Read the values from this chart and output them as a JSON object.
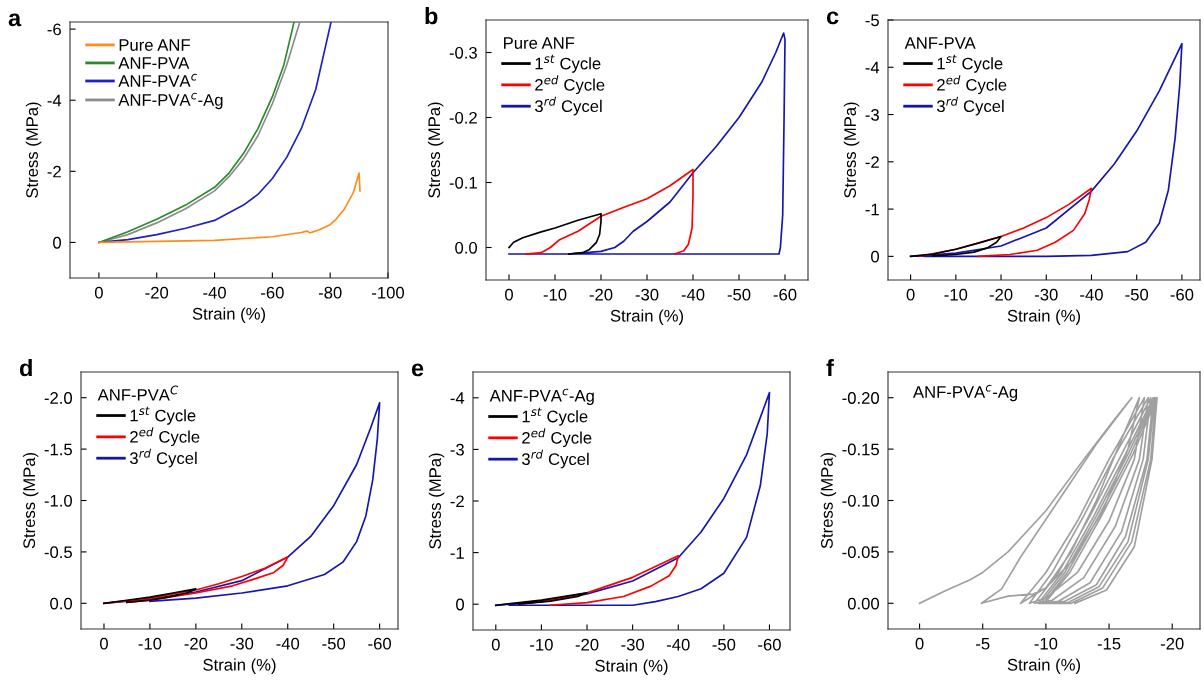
{
  "chart_data": [
    {
      "type": "line",
      "title": "a",
      "xlabel": "Strain (%)",
      "ylabel": "Stress (MPa)",
      "xlim": [
        10,
        -100
      ],
      "ylim": [
        1,
        -6.2
      ],
      "xticks": [
        0,
        -20,
        -40,
        -60,
        -80,
        -100
      ],
      "yticks": [
        -6,
        -4,
        -2,
        0
      ],
      "legend": "top left",
      "series": [
        {
          "name": "Pure ANF",
          "color": "#ff8c1a",
          "x": [
            0,
            -20,
            -40,
            -60,
            -70,
            -72,
            -73,
            -76,
            -80,
            -82,
            -85,
            -88,
            -90,
            -90.3
          ],
          "values": [
            0,
            -0.03,
            -0.06,
            -0.16,
            -0.28,
            -0.32,
            -0.27,
            -0.35,
            -0.5,
            -0.65,
            -0.95,
            -1.4,
            -1.95,
            -1.45
          ]
        },
        {
          "name": "ANF-PVA",
          "color": "#2a8a2a",
          "x": [
            0,
            -10,
            -20,
            -30,
            -40,
            -45,
            -50,
            -55,
            -60,
            -64,
            -67.5
          ],
          "values": [
            0,
            -0.3,
            -0.65,
            -1.05,
            -1.55,
            -1.95,
            -2.5,
            -3.2,
            -4.1,
            -5.0,
            -6.2
          ]
        },
        {
          "name": "ANF-PVA$^{c}$",
          "color": "#2020c0",
          "x": [
            0,
            -10,
            -20,
            -30,
            -40,
            -50,
            -55,
            -60,
            -65,
            -70,
            -75,
            -80.3
          ],
          "values": [
            0,
            -0.08,
            -0.22,
            -0.4,
            -0.62,
            -1.05,
            -1.35,
            -1.8,
            -2.4,
            -3.2,
            -4.3,
            -6.2
          ]
        },
        {
          "name": "ANF-PVA$^{c}$-Ag",
          "color": "#8c8c8c",
          "x": [
            0,
            -10,
            -20,
            -30,
            -40,
            -45,
            -50,
            -55,
            -60,
            -65,
            -69.5
          ],
          "values": [
            0,
            -0.22,
            -0.55,
            -0.95,
            -1.45,
            -1.85,
            -2.35,
            -3.0,
            -3.9,
            -5.0,
            -6.2
          ]
        }
      ]
    },
    {
      "type": "line",
      "title": "b",
      "xlabel": "Strain (%)",
      "ylabel": "Stress (MPa)",
      "xlim": [
        5,
        -65
      ],
      "ylim": [
        0.05,
        -0.35
      ],
      "xticks": [
        0,
        -10,
        -20,
        -30,
        -40,
        -50,
        -60
      ],
      "yticks": [
        {
          "value": 0,
          "label": "0.0"
        },
        -0.1,
        -0.2,
        -0.3
      ],
      "legend": "top left",
      "legend_title": "Pure ANF",
      "series": [
        {
          "name": "1$^{st}$ Cycle",
          "color": "#000000",
          "x": [
            0,
            -1,
            -3,
            -7,
            -10,
            -15,
            -20,
            -20,
            -19.7,
            -19,
            -17.5,
            -16,
            -13
          ],
          "values": [
            0,
            -0.008,
            -0.015,
            -0.024,
            -0.03,
            -0.042,
            -0.052,
            -0.04,
            -0.02,
            -0.008,
            0.003,
            0.008,
            0.01
          ]
        },
        {
          "name": "2$^{ed}$ Cycle",
          "color": "#ff0000",
          "x": [
            -3.6,
            -7,
            -9,
            -11,
            -15,
            -20,
            -25,
            -30,
            -35,
            -39,
            -40,
            -40,
            -39.8,
            -39,
            -38,
            -36
          ],
          "values": [
            0.01,
            0.008,
            0,
            -0.012,
            -0.025,
            -0.048,
            -0.062,
            -0.075,
            -0.095,
            -0.115,
            -0.12,
            -0.08,
            -0.03,
            -0.005,
            0.005,
            0.01
          ]
        },
        {
          "name": "3$^{rd}$ Cycel",
          "color": "#1515b0",
          "x": [
            -13,
            -20,
            -23,
            -25,
            -27,
            -30,
            -35,
            -40,
            -45,
            -50,
            -55,
            -58,
            -59.7,
            -60,
            -59.8,
            -59.5,
            -59,
            -58.7,
            0
          ],
          "values": [
            0.01,
            0.006,
            0,
            -0.01,
            -0.025,
            -0.04,
            -0.07,
            -0.115,
            -0.155,
            -0.2,
            -0.255,
            -0.3,
            -0.33,
            -0.32,
            -0.2,
            -0.05,
            0,
            0.01,
            0.01
          ]
        }
      ]
    },
    {
      "type": "line",
      "title": "c",
      "xlabel": "Strain (%)",
      "ylabel": "Stress (MPa)",
      "xlim": [
        5,
        -64
      ],
      "ylim": [
        0.5,
        -5
      ],
      "xticks": [
        0,
        -10,
        -20,
        -30,
        -40,
        -50,
        -60
      ],
      "yticks": [
        0,
        -1,
        -2,
        -3,
        -4,
        -5
      ],
      "legend": "top left",
      "legend_title": "ANF-PVA",
      "series": [
        {
          "name": "1$^{st}$ Cycle",
          "color": "#000000",
          "x": [
            0,
            -5,
            -10,
            -15,
            -20,
            -19,
            -17,
            -14,
            -10,
            -5
          ],
          "values": [
            0,
            -0.05,
            -0.15,
            -0.28,
            -0.42,
            -0.3,
            -0.18,
            -0.09,
            -0.04,
            -0.01
          ]
        },
        {
          "name": "2$^{ed}$ Cycle",
          "color": "#ff0000",
          "x": [
            -2,
            -10,
            -20,
            -25,
            -30,
            -35,
            -40,
            -39.5,
            -38.5,
            -36,
            -32,
            -28,
            -22,
            -15
          ],
          "values": [
            0,
            -0.15,
            -0.42,
            -0.6,
            -0.82,
            -1.1,
            -1.44,
            -1.2,
            -0.9,
            -0.55,
            -0.3,
            -0.13,
            -0.04,
            0
          ]
        },
        {
          "name": "3$^{rd}$ Cycel",
          "color": "#1515b0",
          "x": [
            0,
            -10,
            -20,
            -30,
            -40,
            -45,
            -50,
            -55,
            -60,
            -59.5,
            -58.5,
            -57,
            -55,
            -52,
            -48,
            -40,
            -30,
            -3
          ],
          "values": [
            0,
            -0.07,
            -0.22,
            -0.6,
            -1.38,
            -1.95,
            -2.65,
            -3.5,
            -4.5,
            -3.6,
            -2.5,
            -1.4,
            -0.7,
            -0.3,
            -0.1,
            -0.02,
            0,
            0
          ]
        }
      ]
    },
    {
      "type": "line",
      "title": "d",
      "xlabel": "Strain (%)",
      "ylabel": "Stress (MPa)",
      "xlim": [
        5,
        -64
      ],
      "ylim": [
        0.25,
        -2.25
      ],
      "xticks": [
        0,
        -10,
        -20,
        -30,
        -40,
        -50,
        -60
      ],
      "yticks": [
        {
          "value": 0,
          "label": "0.0"
        },
        -0.5,
        {
          "value": -1,
          "label": "-1.0"
        },
        -1.5,
        {
          "value": -2,
          "label": "-2.0"
        }
      ],
      "legend": "top left",
      "legend_title": "ANF-PVA$^{C}$",
      "series": [
        {
          "name": "1$^{st}$ Cycle",
          "color": "#000000",
          "x": [
            0,
            -5,
            -10,
            -15,
            -20,
            -18,
            -14,
            -10,
            -5
          ],
          "values": [
            0,
            -0.03,
            -0.06,
            -0.1,
            -0.14,
            -0.1,
            -0.06,
            -0.03,
            -0.01
          ]
        },
        {
          "name": "2$^{ed}$ Cycle",
          "color": "#ff0000",
          "x": [
            0,
            -10,
            -20,
            -25,
            -30,
            -35,
            -40,
            -39,
            -37,
            -33,
            -28,
            -20,
            -10,
            -5
          ],
          "values": [
            0,
            -0.05,
            -0.13,
            -0.19,
            -0.26,
            -0.34,
            -0.45,
            -0.37,
            -0.3,
            -0.24,
            -0.17,
            -0.1,
            -0.03,
            -0.01
          ]
        },
        {
          "name": "3$^{rd}$ Cycel",
          "color": "#1515b0",
          "x": [
            0,
            -10,
            -20,
            -30,
            -40,
            -45,
            -50,
            -55,
            -58,
            -60,
            -59.5,
            -58.5,
            -57,
            -55,
            -52,
            -48,
            -40,
            -30,
            -20,
            -10
          ],
          "values": [
            0,
            -0.04,
            -0.11,
            -0.22,
            -0.45,
            -0.65,
            -0.95,
            -1.35,
            -1.7,
            -1.95,
            -1.6,
            -1.2,
            -0.85,
            -0.6,
            -0.4,
            -0.28,
            -0.17,
            -0.1,
            -0.05,
            -0.02
          ]
        }
      ]
    },
    {
      "type": "line",
      "title": "e",
      "xlabel": "Strain (%)",
      "ylabel": "Stress (MPa)",
      "xlim": [
        5,
        -64.5
      ],
      "ylim": [
        0.5,
        -4.5
      ],
      "xticks": [
        0,
        -10,
        -20,
        -30,
        -40,
        -50,
        -60
      ],
      "yticks": [
        0,
        -1,
        -2,
        -3,
        -4
      ],
      "legend": "top left",
      "legend_title": "ANF-PVA$^{c}$-Ag",
      "series": [
        {
          "name": "1$^{st}$ Cycle",
          "color": "#000000",
          "x": [
            0,
            -10,
            -20,
            -18,
            -12,
            -5
          ],
          "values": [
            0.02,
            -0.08,
            -0.22,
            -0.15,
            -0.06,
            0
          ]
        },
        {
          "name": "2$^{ed}$ Cycle",
          "color": "#ff0000",
          "x": [
            -5,
            -10,
            -20,
            -30,
            -40,
            -39.5,
            -38,
            -34,
            -28,
            -20,
            -12
          ],
          "values": [
            0,
            -0.05,
            -0.22,
            -0.52,
            -0.94,
            -0.75,
            -0.55,
            -0.35,
            -0.15,
            -0.03,
            0.02
          ]
        },
        {
          "name": "3$^{rd}$ Cycel",
          "color": "#1515b0",
          "x": [
            0,
            -10,
            -20,
            -30,
            -40,
            -45,
            -50,
            -55,
            -60,
            -59.5,
            -58,
            -55,
            -50,
            -45,
            -40,
            -35,
            -30,
            -3
          ],
          "values": [
            0.02,
            -0.05,
            -0.2,
            -0.45,
            -0.9,
            -1.4,
            -2.05,
            -2.9,
            -4.1,
            -3.3,
            -2.3,
            -1.3,
            -0.6,
            -0.3,
            -0.15,
            -0.05,
            0.02,
            0.02
          ]
        }
      ]
    },
    {
      "type": "line",
      "title": "f",
      "xlabel": "Strain (%)",
      "ylabel": "Stress (MPa)",
      "xlim": [
        2.5,
        -22.2
      ],
      "ylim": [
        0.025,
        -0.225
      ],
      "xticks": [
        0,
        -5,
        -10,
        -15,
        -20
      ],
      "yticks": [
        {
          "value": 0,
          "label": "0.00"
        },
        {
          "value": -0.05,
          "label": "-0.05"
        },
        {
          "value": -0.1,
          "label": "-0.10"
        },
        {
          "value": -0.15,
          "label": "-0.15"
        },
        {
          "value": -0.2,
          "label": "-0.20"
        }
      ],
      "annotations": [
        "ANF-PVA$^{c}$-Ag"
      ],
      "series": [
        {
          "color": "#a0a0a0",
          "x": [
            0,
            -2,
            -4,
            -5,
            -7,
            -10,
            -13,
            -15.5,
            -16.8,
            -14,
            -11,
            -8,
            -6.5,
            -4.9,
            -7,
            -9,
            -10,
            -12,
            -14,
            -16,
            -17.4,
            -16.5,
            -14.5,
            -12,
            -10,
            -8,
            -10,
            -12.5,
            -15,
            -17.8,
            -17,
            -15,
            -12.5,
            -10,
            -8.7,
            -10.5,
            -13,
            -15.5,
            -18.1,
            -17.4,
            -15.5,
            -13,
            -10.5,
            -9.1,
            -11,
            -13.5,
            -16,
            -18.3,
            -17.7,
            -16,
            -13.5,
            -11,
            -9.4,
            -11.3,
            -13.8,
            -16.3,
            -18.5,
            -18,
            -16.3,
            -14,
            -11.5,
            -9.6,
            -11.5,
            -14,
            -16.5,
            -18.6,
            -18.1,
            -16.5,
            -14.2,
            -11.8,
            -9.8,
            -11.7,
            -14.2,
            -16.7,
            -18.7,
            -18.3,
            -16.8,
            -14.5,
            -12,
            -9.9,
            -11.9,
            -14.4,
            -16.9,
            -18.8,
            -18.4,
            -17,
            -14.8,
            -12.3
          ],
          "values": [
            0,
            -0.012,
            -0.023,
            -0.03,
            -0.05,
            -0.09,
            -0.14,
            -0.18,
            -0.2,
            -0.155,
            -0.1,
            -0.045,
            -0.014,
            0,
            -0.007,
            -0.009,
            -0.015,
            -0.05,
            -0.1,
            -0.16,
            -0.2,
            -0.15,
            -0.09,
            -0.04,
            -0.015,
            0,
            -0.03,
            -0.08,
            -0.14,
            -0.2,
            -0.14,
            -0.08,
            -0.03,
            -0.005,
            0,
            -0.03,
            -0.085,
            -0.145,
            -0.2,
            -0.14,
            -0.075,
            -0.025,
            -0.003,
            0,
            -0.03,
            -0.085,
            -0.145,
            -0.2,
            -0.14,
            -0.07,
            -0.02,
            -0.002,
            0,
            -0.03,
            -0.085,
            -0.145,
            -0.2,
            -0.14,
            -0.065,
            -0.018,
            -0.002,
            0,
            -0.03,
            -0.085,
            -0.145,
            -0.2,
            -0.14,
            -0.06,
            -0.016,
            -0.001,
            0,
            -0.03,
            -0.085,
            -0.145,
            -0.2,
            -0.14,
            -0.06,
            -0.015,
            0,
            0,
            -0.03,
            -0.085,
            -0.145,
            -0.2,
            -0.14,
            -0.055,
            -0.013,
            0
          ]
        }
      ]
    }
  ]
}
